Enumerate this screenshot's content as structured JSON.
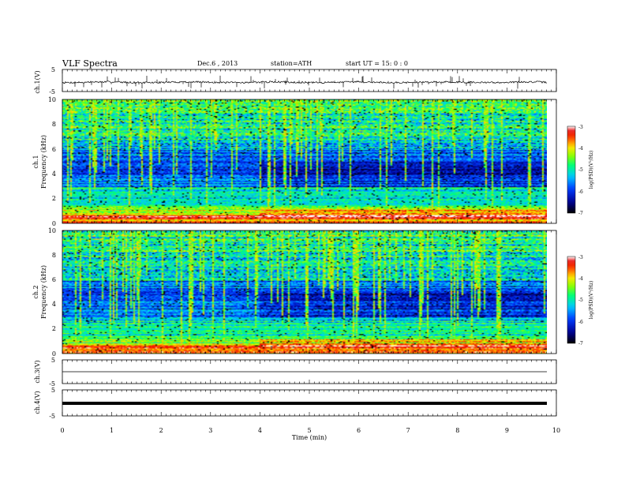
{
  "header": {
    "title": "VLF  Spectra",
    "date": "Dec.6  , 2013",
    "station": "station=ATH",
    "start": "start  UT  =    15: 0  : 0"
  },
  "chart_data": [
    {
      "type": "line",
      "title": "",
      "ylabel": "ch.1(V)",
      "ylim": [
        -5,
        5
      ],
      "yticks": [
        "5",
        "-5"
      ],
      "xlabel": "",
      "xlim": [
        0,
        10
      ],
      "series": [
        {
          "style": "noisy trace near -0.8 V with spikes",
          "mean": -0.8
        }
      ]
    },
    {
      "type": "heatmap",
      "title": "",
      "ylabel": "ch.1\nFrequency  (kHz)",
      "ylabel_line1": "ch.1",
      "ylabel_line2": "Frequency  (kHz)",
      "ylim": [
        0,
        10
      ],
      "yticks": [
        "0",
        "2",
        "4",
        "6",
        "8",
        "10"
      ],
      "xlim": [
        0,
        9.8
      ],
      "colorbar": {
        "label": "log(PSD)(V²/Hz)",
        "range": [
          -7,
          -3
        ],
        "ticks": [
          "-3",
          "-4",
          "-5",
          "-6",
          "-7"
        ]
      },
      "seed": 11
    },
    {
      "type": "heatmap",
      "title": "",
      "ylabel_line1": "ch.2",
      "ylabel_line2": "Frequency  (kHz)",
      "ylim": [
        0,
        10
      ],
      "yticks": [
        "0",
        "2",
        "4",
        "6",
        "8",
        "10"
      ],
      "xlim": [
        0,
        9.8
      ],
      "colorbar": {
        "label": "log(PSD)(V²/Hz)",
        "range": [
          -7,
          -3
        ],
        "ticks": [
          "-3",
          "-4",
          "-5",
          "-6",
          "-7"
        ]
      },
      "seed": 23
    },
    {
      "type": "line",
      "title": "",
      "ylabel": "ch.3(V)",
      "ylim": [
        -5,
        5
      ],
      "yticks": [
        "5",
        "-5"
      ],
      "series": [
        {
          "style": "flat thin trace",
          "mean": -0.5
        }
      ]
    },
    {
      "type": "line",
      "title": "",
      "ylabel": "ch.4(V)",
      "ylim": [
        -5,
        5
      ],
      "yticks": [
        "5",
        "-5"
      ],
      "xlabel": "Time  (min)",
      "xlim": [
        0,
        10
      ],
      "xticks": [
        "0",
        "1",
        "2",
        "3",
        "4",
        "5",
        "6",
        "7",
        "8",
        "9",
        "10"
      ],
      "series": [
        {
          "style": "thick flat band",
          "mean": 0
        }
      ]
    }
  ]
}
